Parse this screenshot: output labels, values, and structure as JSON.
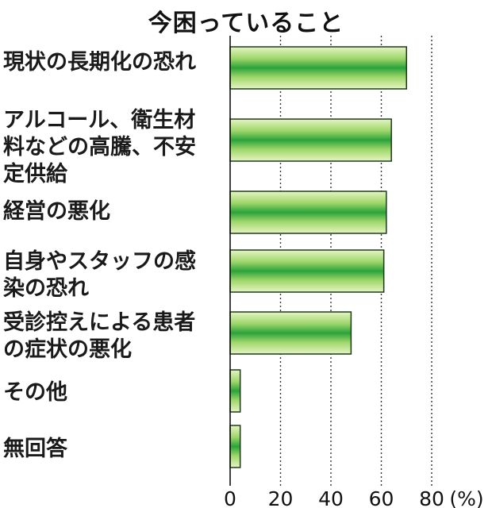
{
  "chart_data": {
    "type": "bar",
    "orientation": "horizontal",
    "title": "今困っていること",
    "categories": [
      "現状の長期化の恐れ",
      "アルコール、衛生材料などの高騰、不安定供給",
      "経営の悪化",
      "自身やスタッフの感染の恐れ",
      "受診控えによる患者の症状の悪化",
      "その他",
      "無回答"
    ],
    "category_lines": [
      [
        "現状の長期化の恐れ"
      ],
      [
        "アルコール、衛生材",
        "料などの高騰、不安",
        "定供給"
      ],
      [
        "経営の悪化"
      ],
      [
        "自身やスタッフの感",
        "染の恐れ"
      ],
      [
        "受診控えによる患者",
        "の症状の悪化"
      ],
      [
        "その他"
      ],
      [
        "無回答"
      ]
    ],
    "values": [
      70,
      64,
      62,
      61,
      48,
      4,
      4
    ],
    "xlim": [
      0,
      80
    ],
    "xticks": [
      0,
      20,
      40,
      60,
      80
    ],
    "unit_label": "(%)",
    "grid": "vertical dotted",
    "colors": {
      "bar_dark": "#2aa33a",
      "bar_light": "#e6f4c2",
      "bar_edge": "#1b3d1b"
    }
  }
}
